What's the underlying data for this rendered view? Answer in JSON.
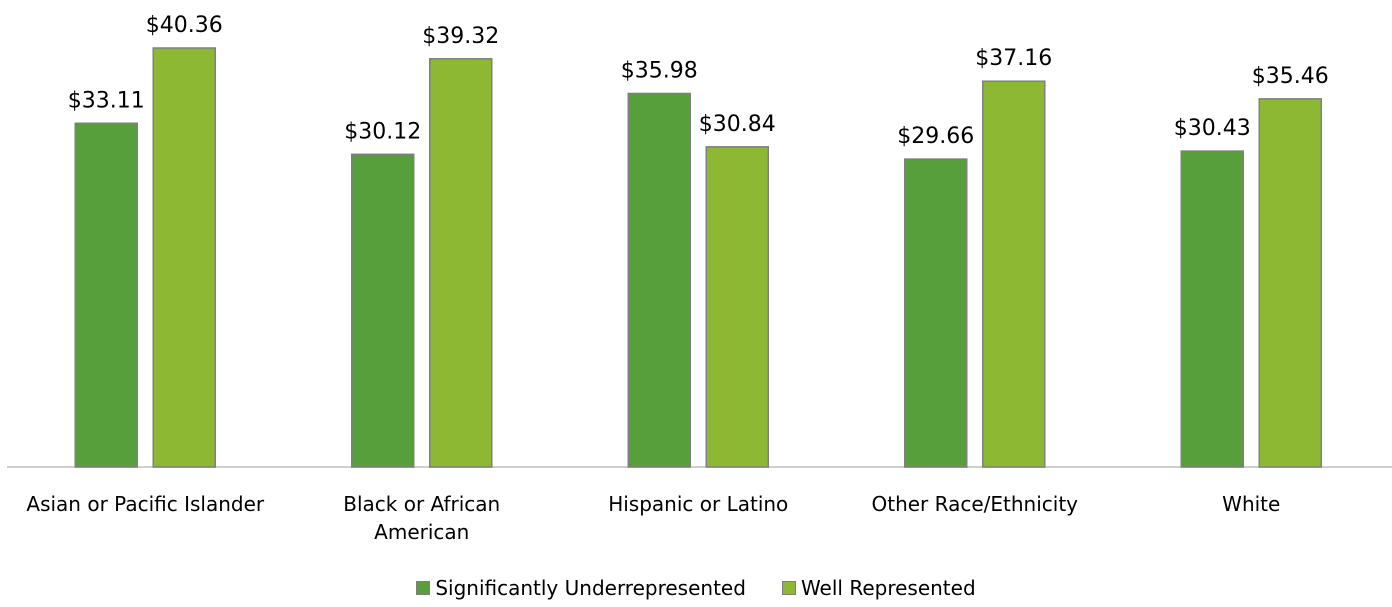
{
  "chart_data": {
    "type": "bar",
    "categories": [
      "Asian or Pacific Islander",
      "Black or African American",
      "Hispanic or Latino",
      "Other Race/Ethnicity",
      "White"
    ],
    "series": [
      {
        "name": "Significantly Underrepresented",
        "color": "#579f3b",
        "values": [
          33.11,
          30.12,
          35.98,
          29.66,
          30.43
        ],
        "value_labels": [
          "$33.11",
          "$30.12",
          "$35.98",
          "$29.66",
          "$30.43"
        ]
      },
      {
        "name": "Well Represented",
        "color": "#8db834",
        "values": [
          40.36,
          39.32,
          30.84,
          37.16,
          35.46
        ],
        "value_labels": [
          "$40.36",
          "$39.32",
          "$30.84",
          "$37.16",
          "$35.46"
        ]
      }
    ],
    "legend": "bottom"
  }
}
